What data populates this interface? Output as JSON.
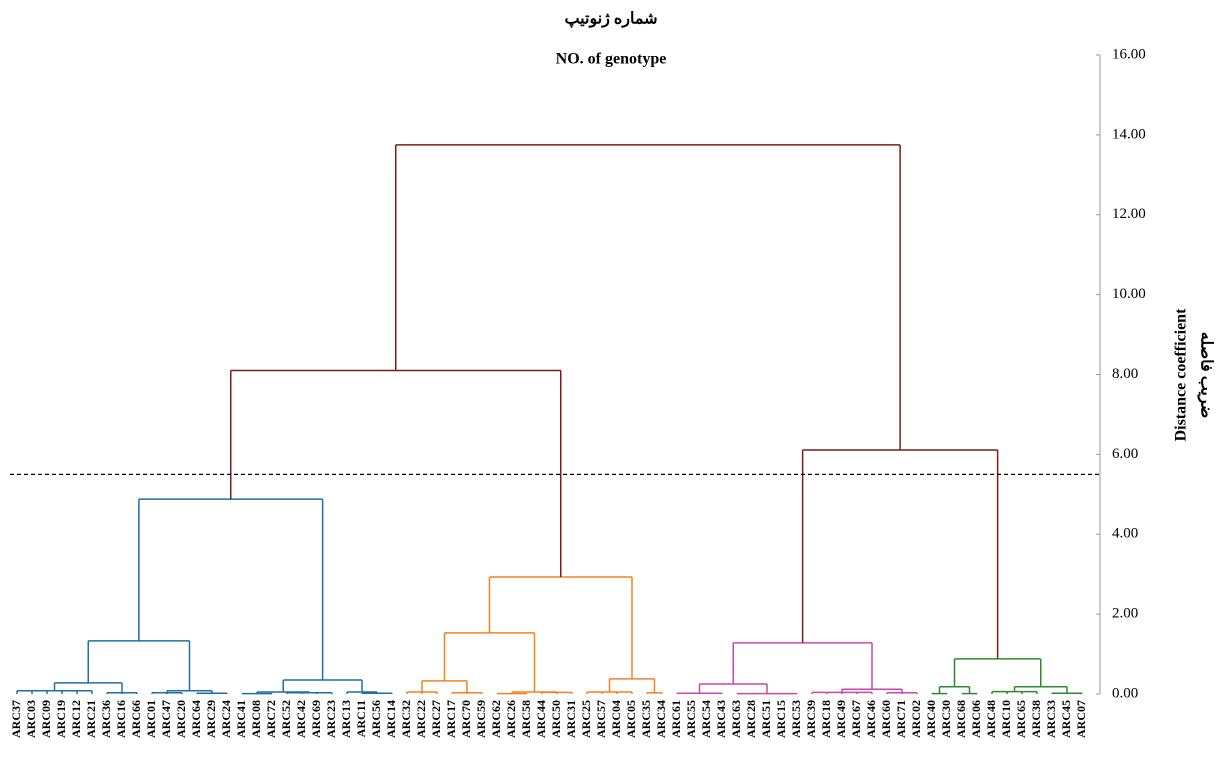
{
  "chart_data": {
    "type": "dendrogram",
    "title": "شماره ژنوتیپ",
    "subtitle": "NO. of genotype",
    "y_label": "Distance coefficient",
    "y_label_2": "ضریب فاصله",
    "ylim": [
      0,
      16
    ],
    "yticks": [
      {
        "value": 0,
        "label": "0.00"
      },
      {
        "value": 2,
        "label": "2.00"
      },
      {
        "value": 4,
        "label": "4.00"
      },
      {
        "value": 6,
        "label": "6.00"
      },
      {
        "value": 8,
        "label": "8.00"
      },
      {
        "value": 10,
        "label": "10.00"
      },
      {
        "value": 12,
        "label": "12.00"
      },
      {
        "value": 14,
        "label": "14.00"
      },
      {
        "value": 16,
        "label": "16.00"
      }
    ],
    "cut_height": 5.5,
    "tree": {
      "height": 13.75,
      "color": "#7a1c1c",
      "children": [
        {
          "height": 8.1,
          "children": [
            {
              "height": 4.88,
              "color": "#1f6fa0",
              "children": [
                {
                  "height": 1.33,
                  "children": [
                    {
                      "height": 0.28,
                      "children": [
                        {
                          "height": 0.08,
                          "children": [
                            "ARC37",
                            "ARC03",
                            "ARC09",
                            "ARC19",
                            "ARC12",
                            "ARC21"
                          ]
                        },
                        {
                          "height": 0.03,
                          "children": [
                            "ARC36",
                            "ARC16",
                            "ARC66"
                          ]
                        }
                      ]
                    },
                    {
                      "height": 0.08,
                      "children": [
                        {
                          "height": 0.03,
                          "children": [
                            "ARC01",
                            "ARC47",
                            "ARC20"
                          ]
                        },
                        {
                          "height": 0.02,
                          "children": [
                            "ARC64",
                            "ARC29",
                            "ARC24"
                          ]
                        }
                      ]
                    }
                  ]
                },
                {
                  "height": 0.35,
                  "children": [
                    {
                      "height": 0.05,
                      "children": [
                        {
                          "height": 0.01,
                          "children": [
                            "ARC41",
                            "ARC08",
                            "ARC72"
                          ]
                        },
                        {
                          "height": 0.03,
                          "children": [
                            "ARC52",
                            "ARC42",
                            "ARC69",
                            "ARC23"
                          ]
                        }
                      ]
                    },
                    {
                      "height": 0.05,
                      "children": [
                        "ARC13",
                        {
                          "height": 0.02,
                          "children": [
                            "ARC11",
                            "ARC56",
                            "ARC14"
                          ]
                        }
                      ]
                    }
                  ]
                }
              ]
            },
            {
              "height": 2.93,
              "color": "#f5811f",
              "children": [
                {
                  "height": 1.53,
                  "children": [
                    {
                      "height": 0.33,
                      "children": [
                        {
                          "height": 0.05,
                          "children": [
                            "ARC32",
                            "ARC22",
                            "ARC27"
                          ]
                        },
                        {
                          "height": 0.03,
                          "children": [
                            "ARC17",
                            "ARC70",
                            "ARC59"
                          ]
                        }
                      ]
                    },
                    {
                      "height": 0.05,
                      "children": [
                        {
                          "height": 0.01,
                          "children": [
                            "ARC62",
                            "ARC26",
                            "ARC58"
                          ]
                        },
                        {
                          "height": 0.04,
                          "children": [
                            "ARC44",
                            "ARC50",
                            "ARC31"
                          ]
                        }
                      ]
                    }
                  ]
                },
                {
                  "height": 0.38,
                  "children": [
                    {
                      "height": 0.05,
                      "children": [
                        "ARC25",
                        "ARC57",
                        "ARC04",
                        "ARC05"
                      ]
                    },
                    {
                      "height": 0.03,
                      "children": [
                        "ARC35",
                        "ARC34"
                      ]
                    }
                  ]
                }
              ]
            }
          ]
        },
        {
          "height": 6.11,
          "children": [
            {
              "height": 1.28,
              "color": "#cc47aa",
              "children": [
                {
                  "height": 0.25,
                  "children": [
                    {
                      "height": 0.02,
                      "children": [
                        "ARC61",
                        "ARC55",
                        "ARC54",
                        "ARC43"
                      ]
                    },
                    {
                      "height": 0.01,
                      "children": [
                        "ARC63",
                        "ARC28",
                        "ARC51",
                        "ARC15",
                        "ARC53"
                      ]
                    }
                  ]
                },
                {
                  "height": 0.12,
                  "children": [
                    {
                      "height": 0.04,
                      "children": [
                        "ARC39",
                        "ARC18",
                        "ARC49",
                        "ARC67",
                        "ARC46"
                      ]
                    },
                    {
                      "height": 0.03,
                      "children": [
                        "ARC60",
                        "ARC71",
                        "ARC02"
                      ]
                    }
                  ]
                }
              ]
            },
            {
              "height": 0.88,
              "color": "#2d8a2d",
              "children": [
                {
                  "height": 0.18,
                  "children": [
                    {
                      "height": 0.01,
                      "children": [
                        "ARC40",
                        "ARC30"
                      ]
                    },
                    {
                      "height": 0.01,
                      "children": [
                        "ARC68",
                        "ARC06"
                      ]
                    }
                  ]
                },
                {
                  "height": 0.18,
                  "children": [
                    {
                      "height": 0.06,
                      "children": [
                        "ARC48",
                        "ARC10",
                        "ARC65",
                        "ARC38"
                      ]
                    },
                    {
                      "height": 0.02,
                      "children": [
                        "ARC33",
                        "ARC45",
                        "ARC07"
                      ]
                    }
                  ]
                }
              ]
            }
          ]
        }
      ]
    }
  }
}
